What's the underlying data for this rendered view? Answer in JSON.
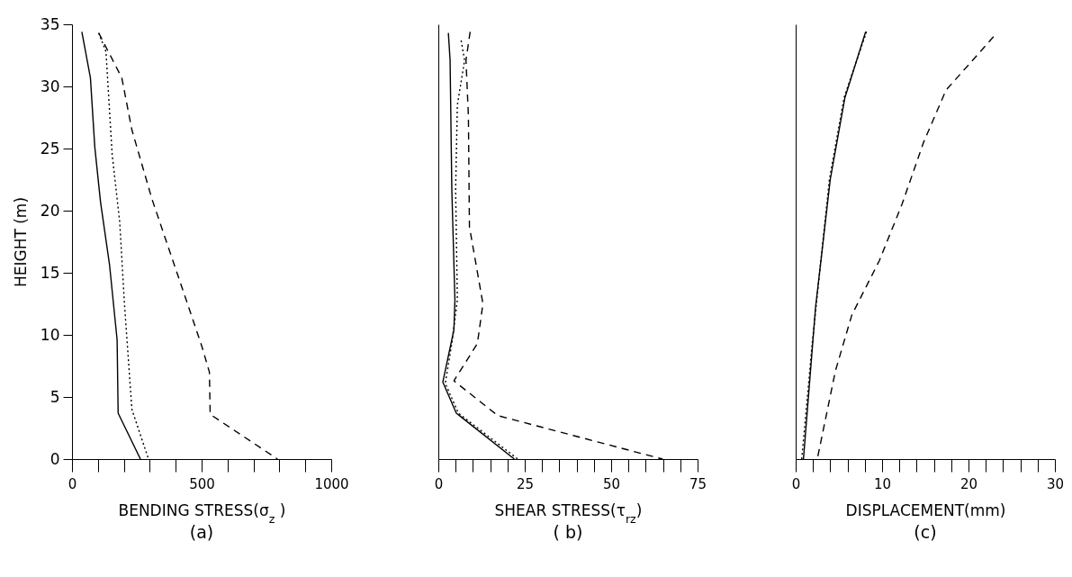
{
  "chart_data": [
    {
      "type": "line",
      "title": "(a)",
      "xlabel": "BENDING STRESS(σ$_{z}$ )",
      "ylabel": "HEIGHT (m)",
      "xlim": [
        0,
        1000
      ],
      "ylim": [
        0,
        35
      ],
      "xticks": [
        0,
        {
          "value": 100,
          "label": null
        },
        {
          "value": 200,
          "label": null
        },
        {
          "value": 300,
          "label": null
        },
        {
          "value": 400,
          "label": null
        },
        500,
        {
          "value": 600,
          "label": null
        },
        {
          "value": 700,
          "label": null
        },
        {
          "value": 800,
          "label": null
        },
        {
          "value": 900,
          "label": null
        },
        1000
      ],
      "yticks": [
        0,
        5,
        10,
        15,
        20,
        25,
        30,
        35
      ],
      "series": [
        {
          "color": "#000000",
          "line_style": "solid",
          "x": [
            38,
            71,
            88,
            110,
            145,
            174,
            178,
            264
          ],
          "values": [
            34.4,
            30.7,
            25.1,
            20.7,
            15.6,
            9.6,
            3.7,
            0
          ]
        },
        {
          "color": "#000000",
          "line_style": "dotted",
          "x": [
            103,
            131,
            155,
            184,
            202,
            231,
            295
          ],
          "values": [
            34.3,
            32.8,
            24.5,
            19.1,
            12.6,
            4.0,
            0
          ]
        },
        {
          "color": "#000000",
          "line_style": "dashed",
          "x": [
            103,
            192,
            231,
            309,
            444,
            502,
            530,
            533,
            793
          ],
          "values": [
            34.3,
            30.7,
            26.5,
            20.9,
            12.6,
            9.0,
            7.0,
            3.6,
            0
          ]
        }
      ]
    },
    {
      "type": "line",
      "title": "( b)",
      "xlabel": "SHEAR STRESS(τ$_{rz}$)",
      "xlim": [
        0,
        75
      ],
      "ylim": [
        0,
        35
      ],
      "tick_labels": "x",
      "xticks": [
        0,
        {
          "value": 5,
          "label": null
        },
        {
          "value": 10,
          "label": null
        },
        {
          "value": 15,
          "label": null
        },
        {
          "value": 20,
          "label": null
        },
        25,
        {
          "value": 30,
          "label": null
        },
        {
          "value": 35,
          "label": null
        },
        {
          "value": 40,
          "label": null
        },
        {
          "value": 45,
          "label": null
        },
        50,
        {
          "value": 55,
          "label": null
        },
        {
          "value": 60,
          "label": null
        },
        {
          "value": 65,
          "label": null
        },
        {
          "value": 70,
          "label": null
        },
        75
      ],
      "series": [
        {
          "color": "#000000",
          "line_style": "solid",
          "x": [
            2.9,
            3.4,
            3.9,
            4.8,
            4.5,
            1.3,
            5.2,
            22
          ],
          "values": [
            34.3,
            32.1,
            21.7,
            12.8,
            10.4,
            6.2,
            3.7,
            0
          ]
        },
        {
          "color": "#000000",
          "line_style": "dotted",
          "x": [
            6.6,
            7.6,
            5.5,
            5.0,
            5.5,
            3.9,
            2.0,
            5.8,
            23
          ],
          "values": [
            33.7,
            32.1,
            28.5,
            21.7,
            12.8,
            9.3,
            6.1,
            3.7,
            0
          ]
        },
        {
          "color": "#000000",
          "line_style": "dashed",
          "x": [
            9.2,
            8.0,
            8.7,
            9.0,
            12.9,
            11.3,
            4.5,
            17.2,
            64.9
          ],
          "values": [
            34.4,
            32.1,
            27.6,
            18.7,
            12.5,
            9.3,
            6.3,
            3.5,
            0
          ]
        }
      ]
    },
    {
      "type": "line",
      "title": "(c)",
      "xlabel": "DISPLACEMENT(mm)",
      "xlim": [
        0,
        30
      ],
      "ylim": [
        0,
        35
      ],
      "tick_labels": "x",
      "xticks": [
        0,
        {
          "value": 2,
          "label": null
        },
        {
          "value": 4,
          "label": null
        },
        {
          "value": 6,
          "label": null
        },
        {
          "value": 8,
          "label": null
        },
        10,
        {
          "value": 12,
          "label": null
        },
        {
          "value": 14,
          "label": null
        },
        {
          "value": 16,
          "label": null
        },
        {
          "value": 18,
          "label": null
        },
        20,
        {
          "value": 22,
          "label": null
        },
        {
          "value": 24,
          "label": null
        },
        {
          "value": 26,
          "label": null
        },
        {
          "value": 28,
          "label": null
        },
        30
      ],
      "series": [
        {
          "color": "#000000",
          "line_style": "solid",
          "x": [
            8.1,
            5.7,
            4.0,
            2.3,
            0.9
          ],
          "values": [
            34.4,
            29.1,
            22.5,
            12.2,
            0
          ]
        },
        {
          "color": "#000000",
          "line_style": "dotted",
          "x": [
            8.2,
            5.6,
            3.9,
            1.9,
            0.7
          ],
          "values": [
            34.4,
            29.1,
            22.5,
            9.2,
            0
          ]
        },
        {
          "color": "#000000",
          "line_style": "dashed",
          "x": [
            22.9,
            17.4,
            14.8,
            12.3,
            9.7,
            6.5,
            4.6,
            2.5
          ],
          "values": [
            34,
            29.7,
            25.5,
            20.5,
            16.0,
            11.6,
            7.1,
            0
          ]
        }
      ]
    }
  ]
}
